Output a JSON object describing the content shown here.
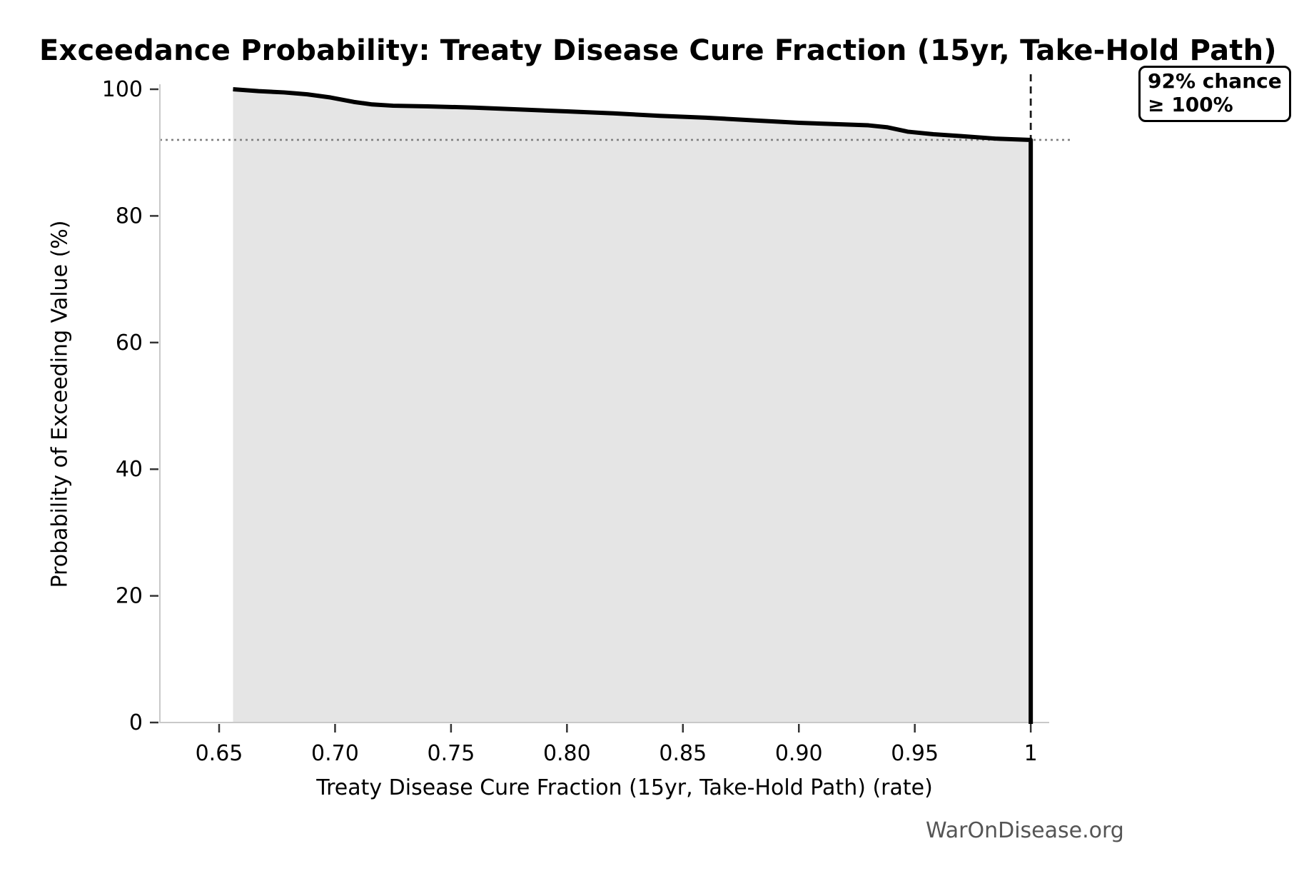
{
  "page": {
    "watermark": "WarOnDisease.org"
  },
  "chart_data": {
    "type": "area",
    "title": "Exceedance Probability: Treaty Disease Cure Fraction (15yr, Take-Hold Path)",
    "xlabel": "Treaty Disease Cure Fraction (15yr, Take-Hold Path) (rate)",
    "ylabel": "Probability of Exceeding Value (%)",
    "xlim": [
      0.624,
      1.008
    ],
    "ylim": [
      0,
      103
    ],
    "grid": false,
    "legend": false,
    "xticks": {
      "values": [
        0.65,
        0.7,
        0.75,
        0.8,
        0.85,
        0.9,
        0.95,
        1.0
      ],
      "labels": [
        "0.65",
        "0.70",
        "0.75",
        "0.80",
        "0.85",
        "0.90",
        "0.95",
        "1"
      ]
    },
    "yticks": {
      "values": [
        0,
        20,
        40,
        60,
        80,
        100
      ],
      "labels": [
        "0",
        "20",
        "40",
        "60",
        "80",
        "100"
      ]
    },
    "series": [
      {
        "name": "Exceedance probability",
        "line_color": "#000000",
        "fill_color": "#e5e5e5",
        "points": [
          [
            0.656,
            100.0
          ],
          [
            0.667,
            99.7
          ],
          [
            0.678,
            99.5
          ],
          [
            0.688,
            99.2
          ],
          [
            0.698,
            98.7
          ],
          [
            0.708,
            98.0
          ],
          [
            0.716,
            97.6
          ],
          [
            0.725,
            97.4
          ],
          [
            0.74,
            97.3
          ],
          [
            0.76,
            97.1
          ],
          [
            0.78,
            96.8
          ],
          [
            0.8,
            96.5
          ],
          [
            0.82,
            96.2
          ],
          [
            0.84,
            95.8
          ],
          [
            0.86,
            95.5
          ],
          [
            0.88,
            95.1
          ],
          [
            0.9,
            94.7
          ],
          [
            0.915,
            94.5
          ],
          [
            0.93,
            94.3
          ],
          [
            0.938,
            94.0
          ],
          [
            0.947,
            93.3
          ],
          [
            0.958,
            92.9
          ],
          [
            0.97,
            92.6
          ],
          [
            0.985,
            92.2
          ],
          [
            1.0,
            92.0
          ]
        ],
        "drop_to_zero_at": 1.0
      }
    ],
    "reference_lines": {
      "horizontal_dotted": {
        "probability_pct": 92,
        "color": "#808080"
      },
      "vertical_dashed": {
        "x": 1.0,
        "color": "#1a1a1a"
      }
    },
    "annotation": {
      "lines": [
        "92% chance",
        "≥ 100%"
      ]
    },
    "threshold_summary": {
      "chance_pct": 92,
      "at_or_above": "100%"
    }
  }
}
